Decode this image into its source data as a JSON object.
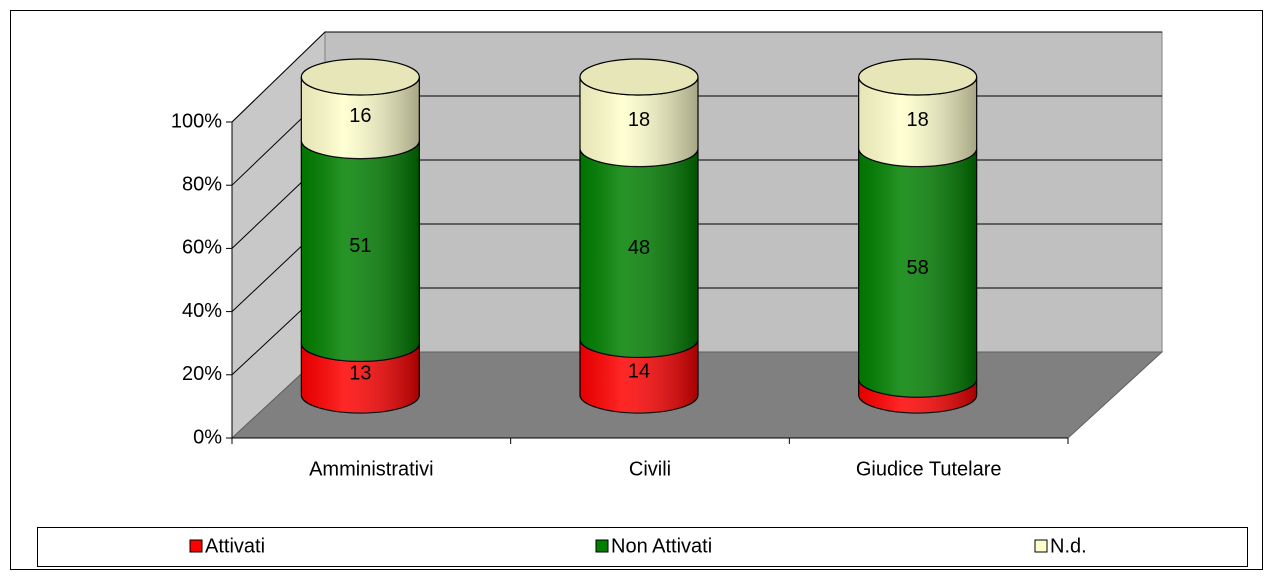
{
  "chart_data": {
    "type": "bar3d_cylinder",
    "stacking": "percent",
    "categories": [
      "Amministrativi",
      "Civili",
      "Giudice Tutelare"
    ],
    "series": [
      {
        "name": "Attivati",
        "color": "#ff0000",
        "values": [
          13,
          14,
          4
        ]
      },
      {
        "name": "Non Attivati",
        "color": "#008000",
        "values": [
          51,
          48,
          58
        ]
      },
      {
        "name": "N.d.",
        "color": "#ffffcc",
        "values": [
          16,
          18,
          18
        ]
      }
    ],
    "ylim": [
      0,
      100
    ],
    "yticks": [
      {
        "value": 0,
        "label": "0%"
      },
      {
        "value": 20,
        "label": "20%"
      },
      {
        "value": 40,
        "label": "40%"
      },
      {
        "value": 60,
        "label": "60%"
      },
      {
        "value": 80,
        "label": "80%"
      },
      {
        "value": 100,
        "label": "100%"
      }
    ],
    "grid": true,
    "legend": "bottom"
  }
}
